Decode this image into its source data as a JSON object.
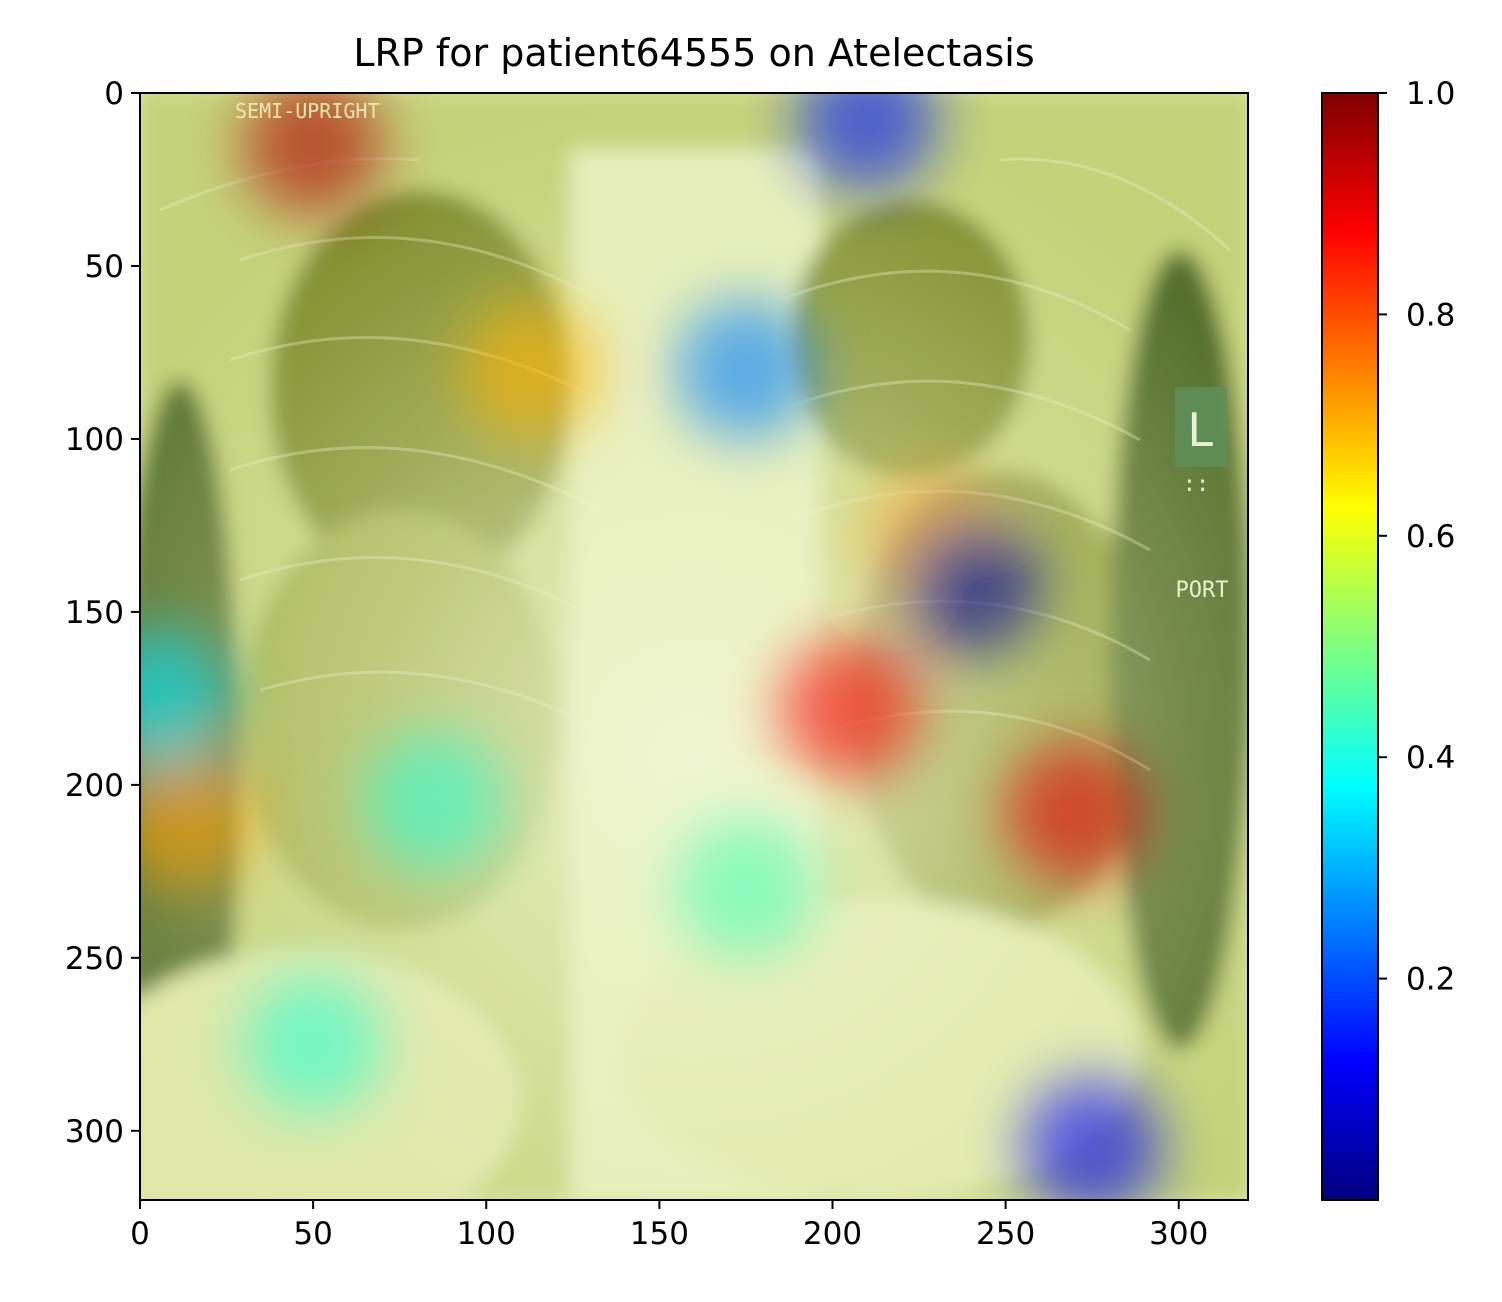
{
  "chart_data": {
    "type": "heatmap",
    "title": "LRP for patient64555 on Atelectasis",
    "xlabel": "",
    "ylabel": "",
    "xlim": [
      0,
      320
    ],
    "ylim": [
      320,
      0
    ],
    "x_ticks": [
      0,
      50,
      100,
      150,
      200,
      250,
      300
    ],
    "y_ticks": [
      0,
      50,
      100,
      150,
      200,
      250,
      300
    ],
    "x_tick_labels": [
      "0",
      "50",
      "100",
      "150",
      "200",
      "250",
      "300"
    ],
    "y_tick_labels": [
      "0",
      "50",
      "100",
      "150",
      "200",
      "250",
      "300"
    ],
    "background_image": "chest x-ray (frontal, portable)",
    "overlay_colormap": "jet",
    "overlay_alpha": 0.45,
    "colorbar": {
      "range": [
        0.0,
        1.0
      ],
      "ticks": [
        0.2,
        0.4,
        0.6,
        0.8,
        1.0
      ],
      "tick_labels": [
        "0.2",
        "0.4",
        "0.6",
        "0.8",
        "1.0"
      ],
      "colors": [
        "#00007f",
        "#0000ff",
        "#007fff",
        "#00ffff",
        "#7fff7f",
        "#ffff00",
        "#ff7f00",
        "#ff0000",
        "#7f0000"
      ]
    },
    "relevance_regions": [
      {
        "x": 50,
        "y": 15,
        "value": 0.95
      },
      {
        "x": 13,
        "y": 210,
        "value": 0.72
      },
      {
        "x": 113,
        "y": 80,
        "value": 0.7
      },
      {
        "x": 205,
        "y": 178,
        "value": 0.88
      },
      {
        "x": 270,
        "y": 208,
        "value": 0.9
      },
      {
        "x": 230,
        "y": 130,
        "value": 0.72
      },
      {
        "x": 240,
        "y": 142,
        "value": 0.02
      },
      {
        "x": 210,
        "y": 8,
        "value": 0.15
      },
      {
        "x": 175,
        "y": 80,
        "value": 0.25
      },
      {
        "x": 275,
        "y": 305,
        "value": 0.12
      },
      {
        "x": 85,
        "y": 205,
        "value": 0.42
      },
      {
        "x": 50,
        "y": 275,
        "value": 0.42
      },
      {
        "x": 175,
        "y": 230,
        "value": 0.45
      },
      {
        "x": 5,
        "y": 175,
        "value": 0.35
      }
    ],
    "image_annotations": {
      "top_left": "SEMI-UPRIGHT",
      "side_marker": "L",
      "side_marker_sub": "::",
      "right": "PORT"
    }
  }
}
